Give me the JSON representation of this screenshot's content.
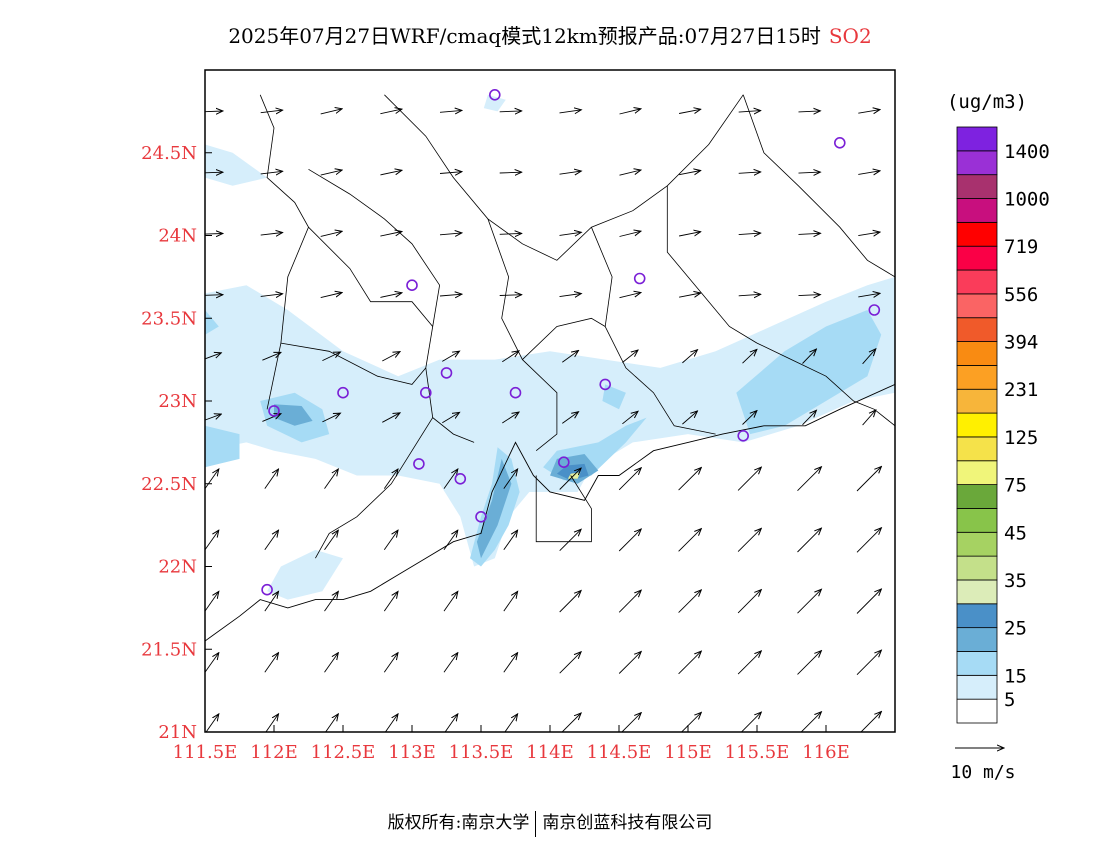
{
  "header": {
    "title": "2025年07月27日WRF/cmaq模式12km预报产品:07月27日15时",
    "species": "SO2"
  },
  "map": {
    "lon_range": [
      111.5,
      116.5
    ],
    "lat_range": [
      21.0,
      25.0
    ],
    "x_ticks": [
      {
        "value": 111.5,
        "label": "111.5E"
      },
      {
        "value": 112.0,
        "label": "112E"
      },
      {
        "value": 112.5,
        "label": "112.5E"
      },
      {
        "value": 113.0,
        "label": "113E"
      },
      {
        "value": 113.5,
        "label": "113.5E"
      },
      {
        "value": 114.0,
        "label": "114E"
      },
      {
        "value": 114.5,
        "label": "114.5E"
      },
      {
        "value": 115.0,
        "label": "115E"
      },
      {
        "value": 115.5,
        "label": "115.5E"
      },
      {
        "value": 116.0,
        "label": "116E"
      }
    ],
    "y_ticks": [
      {
        "value": 21.0,
        "label": "21N"
      },
      {
        "value": 21.5,
        "label": "21.5N"
      },
      {
        "value": 22.0,
        "label": "22N"
      },
      {
        "value": 22.5,
        "label": "22.5N"
      },
      {
        "value": 23.0,
        "label": "23N"
      },
      {
        "value": 23.5,
        "label": "23.5N"
      },
      {
        "value": 24.0,
        "label": "24N"
      },
      {
        "value": 24.5,
        "label": "24.5N"
      }
    ],
    "tick_color": "#e8383d",
    "contour_fills": [
      {
        "level": "5-15",
        "color": "#d6eefb",
        "points": [
          [
            111.5,
            23.65
          ],
          [
            111.8,
            23.7
          ],
          [
            112.1,
            23.55
          ],
          [
            112.5,
            23.3
          ],
          [
            112.9,
            23.15
          ],
          [
            113.2,
            23.25
          ],
          [
            113.6,
            23.25
          ],
          [
            114.0,
            23.3
          ],
          [
            114.4,
            23.25
          ],
          [
            114.8,
            23.2
          ],
          [
            115.2,
            23.3
          ],
          [
            115.6,
            23.45
          ],
          [
            116.0,
            23.6
          ],
          [
            116.3,
            23.7
          ],
          [
            116.5,
            23.75
          ],
          [
            116.5,
            23.05
          ],
          [
            116.2,
            23.0
          ],
          [
            115.8,
            22.85
          ],
          [
            115.4,
            22.75
          ],
          [
            115.0,
            22.8
          ],
          [
            114.6,
            22.75
          ],
          [
            114.3,
            22.6
          ],
          [
            114.2,
            22.45
          ],
          [
            113.85,
            22.45
          ],
          [
            113.7,
            22.3
          ],
          [
            113.6,
            22.05
          ],
          [
            113.45,
            22.0
          ],
          [
            113.35,
            22.3
          ],
          [
            113.2,
            22.5
          ],
          [
            112.9,
            22.55
          ],
          [
            112.6,
            22.55
          ],
          [
            112.3,
            22.65
          ],
          [
            112.0,
            22.7
          ],
          [
            111.8,
            22.75
          ],
          [
            111.5,
            22.7
          ]
        ]
      },
      {
        "level": "5-15",
        "color": "#d6eefb",
        "points": [
          [
            111.5,
            24.55
          ],
          [
            111.7,
            24.5
          ],
          [
            111.95,
            24.35
          ],
          [
            111.7,
            24.3
          ],
          [
            111.5,
            24.35
          ]
        ]
      },
      {
        "level": "5-15",
        "color": "#d6eefb",
        "points": [
          [
            112.3,
            22.1
          ],
          [
            112.5,
            22.05
          ],
          [
            112.35,
            21.85
          ],
          [
            112.1,
            21.8
          ],
          [
            111.95,
            21.85
          ],
          [
            112.05,
            22.0
          ]
        ]
      },
      {
        "level": "5-15",
        "color": "#d6eefb",
        "points": [
          [
            113.55,
            24.85
          ],
          [
            113.68,
            24.82
          ],
          [
            113.62,
            24.75
          ],
          [
            113.52,
            24.77
          ]
        ]
      },
      {
        "level": "15-25",
        "color": "#a6dbf5",
        "points": [
          [
            111.9,
            23.0
          ],
          [
            112.15,
            23.05
          ],
          [
            112.35,
            22.95
          ],
          [
            112.4,
            22.8
          ],
          [
            112.2,
            22.75
          ],
          [
            111.95,
            22.85
          ]
        ]
      },
      {
        "level": "15-25",
        "color": "#a6dbf5",
        "points": [
          [
            111.5,
            22.85
          ],
          [
            111.75,
            22.8
          ],
          [
            111.75,
            22.65
          ],
          [
            111.5,
            22.6
          ]
        ]
      },
      {
        "level": "15-25",
        "color": "#a6dbf5",
        "points": [
          [
            111.5,
            23.55
          ],
          [
            111.6,
            23.45
          ],
          [
            111.5,
            23.4
          ]
        ]
      },
      {
        "level": "15-25",
        "color": "#a6dbf5",
        "points": [
          [
            115.35,
            23.05
          ],
          [
            115.7,
            23.3
          ],
          [
            116.0,
            23.45
          ],
          [
            116.3,
            23.55
          ],
          [
            116.4,
            23.4
          ],
          [
            116.3,
            23.15
          ],
          [
            116.0,
            23.0
          ],
          [
            115.7,
            22.85
          ],
          [
            115.45,
            22.8
          ]
        ]
      },
      {
        "level": "15-25",
        "color": "#a6dbf5",
        "points": [
          [
            113.62,
            22.72
          ],
          [
            113.72,
            22.65
          ],
          [
            113.78,
            22.45
          ],
          [
            113.7,
            22.25
          ],
          [
            113.6,
            22.1
          ],
          [
            113.5,
            22.0
          ],
          [
            113.42,
            22.05
          ],
          [
            113.5,
            22.3
          ],
          [
            113.58,
            22.5
          ]
        ]
      },
      {
        "level": "15-25",
        "color": "#a6dbf5",
        "points": [
          [
            114.05,
            22.7
          ],
          [
            114.35,
            22.75
          ],
          [
            114.55,
            22.85
          ],
          [
            114.7,
            22.9
          ],
          [
            114.55,
            22.75
          ],
          [
            114.3,
            22.55
          ],
          [
            114.1,
            22.52
          ],
          [
            113.95,
            22.6
          ]
        ]
      },
      {
        "level": "15-25",
        "color": "#a6dbf5",
        "points": [
          [
            114.4,
            23.1
          ],
          [
            114.55,
            23.05
          ],
          [
            114.5,
            22.95
          ],
          [
            114.38,
            23.0
          ]
        ]
      },
      {
        "level": "25-35",
        "color": "#6aaed6",
        "points": [
          [
            112.0,
            22.98
          ],
          [
            112.2,
            22.97
          ],
          [
            112.28,
            22.88
          ],
          [
            112.15,
            22.85
          ],
          [
            112.0,
            22.9
          ]
        ]
      },
      {
        "level": "25-35",
        "color": "#6aaed6",
        "points": [
          [
            113.65,
            22.65
          ],
          [
            113.72,
            22.5
          ],
          [
            113.62,
            22.25
          ],
          [
            113.5,
            22.05
          ],
          [
            113.47,
            22.15
          ],
          [
            113.58,
            22.4
          ]
        ]
      },
      {
        "level": "25-35",
        "color": "#6aaed6",
        "points": [
          [
            114.05,
            22.65
          ],
          [
            114.25,
            22.68
          ],
          [
            114.35,
            22.58
          ],
          [
            114.2,
            22.5
          ],
          [
            114.0,
            22.55
          ]
        ]
      },
      {
        "level": "35-45",
        "color": "#4a90c8",
        "points": [
          [
            114.12,
            22.61
          ],
          [
            114.25,
            22.62
          ],
          [
            114.28,
            22.55
          ],
          [
            114.15,
            22.52
          ],
          [
            114.05,
            22.56
          ]
        ]
      },
      {
        "level": "45-75",
        "color": "#e6f0a0",
        "points": [
          [
            114.15,
            22.56
          ],
          [
            114.22,
            22.57
          ],
          [
            114.2,
            22.53
          ],
          [
            114.13,
            22.53
          ]
        ]
      }
    ],
    "boundary_lines": [
      [
        [
          111.9,
          24.85
        ],
        [
          112.0,
          24.65
        ],
        [
          111.95,
          24.35
        ],
        [
          112.15,
          24.2
        ],
        [
          112.25,
          24.05
        ],
        [
          112.1,
          23.75
        ],
        [
          112.05,
          23.35
        ],
        [
          111.95,
          22.95
        ]
      ],
      [
        [
          112.25,
          24.4
        ],
        [
          112.55,
          24.25
        ],
        [
          112.8,
          24.1
        ],
        [
          113.0,
          23.95
        ],
        [
          113.2,
          23.7
        ],
        [
          113.15,
          23.45
        ],
        [
          113.1,
          23.2
        ],
        [
          113.15,
          22.9
        ],
        [
          113.3,
          22.8
        ],
        [
          113.45,
          22.75
        ]
      ],
      [
        [
          112.8,
          24.85
        ],
        [
          113.1,
          24.6
        ],
        [
          113.3,
          24.35
        ],
        [
          113.55,
          24.1
        ],
        [
          113.8,
          23.95
        ],
        [
          114.05,
          23.85
        ],
        [
          114.3,
          24.05
        ],
        [
          114.6,
          24.15
        ],
        [
          114.85,
          24.3
        ],
        [
          115.15,
          24.55
        ],
        [
          115.4,
          24.85
        ]
      ],
      [
        [
          113.55,
          24.1
        ],
        [
          113.7,
          23.75
        ],
        [
          113.65,
          23.5
        ],
        [
          113.8,
          23.25
        ],
        [
          114.05,
          23.05
        ],
        [
          114.05,
          22.8
        ],
        [
          113.9,
          22.7
        ]
      ],
      [
        [
          114.3,
          24.05
        ],
        [
          114.45,
          23.75
        ],
        [
          114.4,
          23.45
        ],
        [
          114.55,
          23.2
        ],
        [
          114.75,
          23.05
        ],
        [
          114.9,
          22.85
        ],
        [
          115.2,
          22.8
        ]
      ],
      [
        [
          114.85,
          24.3
        ],
        [
          114.85,
          23.9
        ],
        [
          115.1,
          23.65
        ],
        [
          115.3,
          23.45
        ],
        [
          115.5,
          23.35
        ]
      ],
      [
        [
          115.4,
          24.85
        ],
        [
          115.55,
          24.5
        ],
        [
          115.8,
          24.3
        ],
        [
          116.1,
          24.05
        ],
        [
          116.3,
          23.85
        ],
        [
          116.5,
          23.75
        ]
      ],
      [
        [
          112.25,
          24.05
        ],
        [
          112.55,
          23.8
        ],
        [
          112.7,
          23.6
        ],
        [
          113.0,
          23.6
        ],
        [
          113.15,
          23.45
        ]
      ],
      [
        [
          113.15,
          22.9
        ],
        [
          113.0,
          22.7
        ],
        [
          112.85,
          22.5
        ],
        [
          112.6,
          22.3
        ],
        [
          112.4,
          22.2
        ],
        [
          112.3,
          22.05
        ]
      ],
      [
        [
          112.05,
          23.35
        ],
        [
          112.4,
          23.3
        ],
        [
          112.75,
          23.15
        ],
        [
          113.0,
          23.1
        ],
        [
          113.1,
          23.2
        ]
      ],
      [
        [
          113.8,
          23.25
        ],
        [
          114.05,
          23.45
        ],
        [
          114.3,
          23.5
        ],
        [
          114.4,
          23.45
        ]
      ],
      [
        [
          115.5,
          23.35
        ],
        [
          115.75,
          23.25
        ],
        [
          116.0,
          23.15
        ],
        [
          116.2,
          23.0
        ],
        [
          116.35,
          22.95
        ],
        [
          116.5,
          22.85
        ]
      ]
    ],
    "coastline": [
      [
        111.5,
        21.55
      ],
      [
        111.75,
        21.7
      ],
      [
        111.9,
        21.8
      ],
      [
        112.1,
        21.75
      ],
      [
        112.3,
        21.8
      ],
      [
        112.5,
        21.8
      ],
      [
        112.7,
        21.85
      ],
      [
        112.9,
        21.95
      ],
      [
        113.1,
        22.05
      ],
      [
        113.3,
        22.15
      ],
      [
        113.5,
        22.2
      ],
      [
        113.58,
        22.45
      ],
      [
        113.75,
        22.75
      ],
      [
        113.88,
        22.55
      ],
      [
        114.0,
        22.45
      ],
      [
        114.25,
        22.4
      ],
      [
        114.35,
        22.55
      ],
      [
        114.5,
        22.55
      ],
      [
        114.75,
        22.7
      ],
      [
        115.0,
        22.75
      ],
      [
        115.25,
        22.8
      ],
      [
        115.55,
        22.85
      ],
      [
        115.85,
        22.85
      ],
      [
        116.1,
        22.95
      ],
      [
        116.5,
        23.1
      ]
    ],
    "hk_box": [
      [
        113.9,
        22.55
      ],
      [
        113.9,
        22.15
      ],
      [
        114.3,
        22.15
      ],
      [
        114.3,
        22.35
      ],
      [
        114.15,
        22.55
      ]
    ],
    "stations": [
      [
        113.6,
        24.85
      ],
      [
        116.1,
        24.56
      ],
      [
        113.0,
        23.7
      ],
      [
        114.65,
        23.74
      ],
      [
        116.35,
        23.55
      ],
      [
        112.5,
        23.05
      ],
      [
        113.1,
        23.05
      ],
      [
        113.25,
        23.17
      ],
      [
        113.75,
        23.05
      ],
      [
        114.4,
        23.1
      ],
      [
        112.0,
        22.94
      ],
      [
        113.05,
        22.62
      ],
      [
        113.35,
        22.53
      ],
      [
        114.1,
        22.63
      ],
      [
        115.4,
        22.79
      ],
      [
        113.5,
        22.3
      ],
      [
        111.95,
        21.86
      ]
    ],
    "wind": {
      "spacing_lon": 0.433,
      "spacing_lat": 0.37,
      "reference_label": "10 m/s"
    }
  },
  "colorbar": {
    "unit": "(ug/m3)",
    "colors": [
      "#ffffff",
      "#d6eefb",
      "#a6dbf5",
      "#6aaed6",
      "#4a90c8",
      "#dcecb8",
      "#c4e08a",
      "#a6d262",
      "#88c44a",
      "#6aa83a",
      "#f0f57a",
      "#f5e24a",
      "#fff000",
      "#f7b53a",
      "#fca023",
      "#f98b12",
      "#f05a2a",
      "#fa6464",
      "#fa3c5a",
      "#fa0046",
      "#ff0000",
      "#c80f7e",
      "#a8316e",
      "#9a30d6",
      "#7e22e0"
    ],
    "labels": [
      {
        "text": "5",
        "index": 1
      },
      {
        "text": "15",
        "index": 2
      },
      {
        "text": "25",
        "index": 4
      },
      {
        "text": "35",
        "index": 6
      },
      {
        "text": "45",
        "index": 8
      },
      {
        "text": "75",
        "index": 10
      },
      {
        "text": "125",
        "index": 12
      },
      {
        "text": "231",
        "index": 14
      },
      {
        "text": "394",
        "index": 16
      },
      {
        "text": "556",
        "index": 18
      },
      {
        "text": "719",
        "index": 20
      },
      {
        "text": "1000",
        "index": 22
      },
      {
        "text": "1400",
        "index": 24
      }
    ]
  },
  "footer": {
    "left": "版权所有:南京大学",
    "right": "南京创蓝科技有限公司"
  }
}
